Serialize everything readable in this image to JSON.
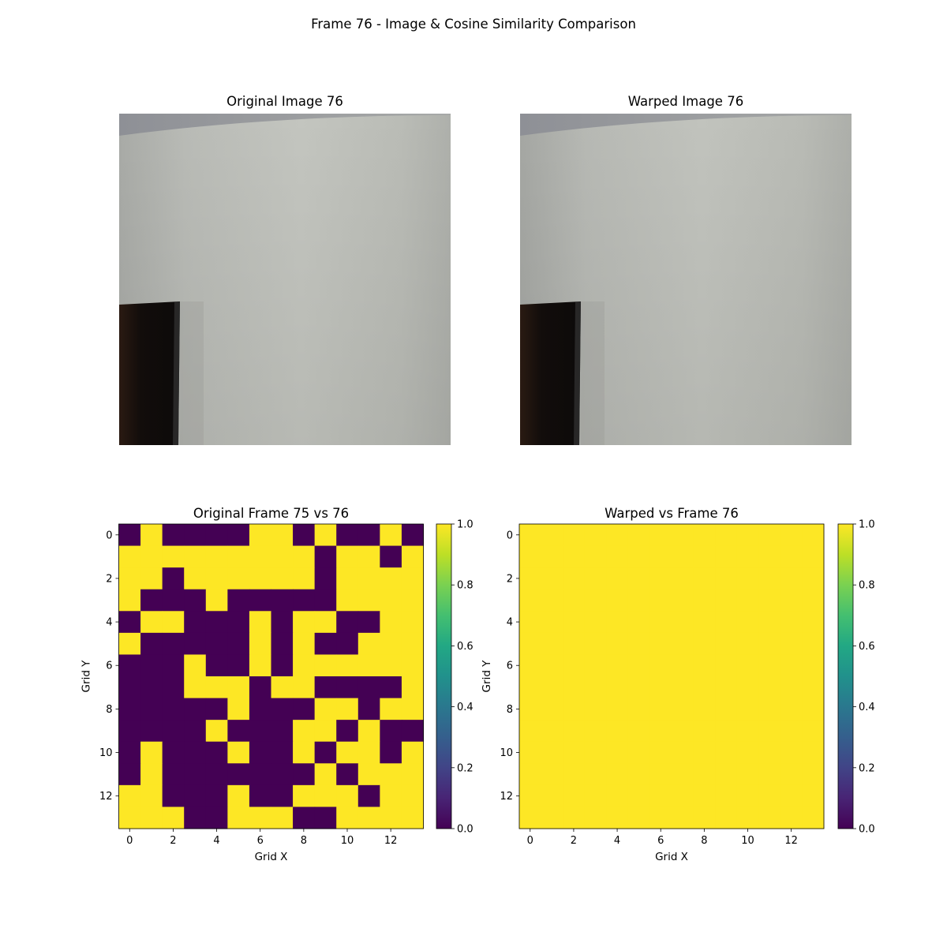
{
  "figure": {
    "suptitle": "Frame 76 - Image & Cosine Similarity Comparison"
  },
  "images": [
    {
      "title": "Original Image 76",
      "content": "photo of a light grey wall with a dark monitor edge at lower left"
    },
    {
      "title": "Warped Image 76",
      "content": "photo of a light grey wall with a dark monitor edge at lower left"
    }
  ],
  "colors": {
    "viridis_low": "#440154",
    "viridis_high": "#fde725",
    "wall_light": "#c2c4be",
    "wall_dark": "#a8aaa6",
    "monitor": "#141010"
  },
  "chart_data": [
    {
      "type": "heatmap",
      "title": "Original Frame 75 vs 76",
      "xlabel": "Grid X",
      "ylabel": "Grid Y",
      "x_ticks": [
        0,
        2,
        4,
        6,
        8,
        10,
        12
      ],
      "y_ticks": [
        0,
        2,
        4,
        6,
        8,
        10,
        12
      ],
      "colormap": "viridis",
      "vmin": 0.0,
      "vmax": 1.0,
      "colorbar_ticks": [
        "0.0",
        "0.2",
        "0.4",
        "0.6",
        "0.8",
        "1.0"
      ],
      "values": [
        [
          0,
          1,
          0,
          0,
          0,
          0,
          1,
          1,
          0,
          1,
          0,
          0,
          1,
          0
        ],
        [
          1,
          1,
          1,
          1,
          1,
          1,
          1,
          1,
          1,
          0,
          1,
          1,
          0,
          1
        ],
        [
          1,
          1,
          0,
          1,
          1,
          1,
          1,
          1,
          1,
          0,
          1,
          1,
          1,
          1
        ],
        [
          1,
          0,
          0,
          0,
          1,
          0,
          0,
          0,
          0,
          0,
          1,
          1,
          1,
          1
        ],
        [
          0,
          1,
          1,
          0,
          0,
          0,
          1,
          0,
          1,
          1,
          0,
          0,
          1,
          1
        ],
        [
          1,
          0,
          0,
          0,
          0,
          0,
          1,
          0,
          1,
          0,
          0,
          1,
          1,
          1
        ],
        [
          0,
          0,
          0,
          1,
          0,
          0,
          1,
          0,
          1,
          1,
          1,
          1,
          1,
          1
        ],
        [
          0,
          0,
          0,
          1,
          1,
          1,
          0,
          1,
          1,
          0,
          0,
          0,
          0,
          1
        ],
        [
          0,
          0,
          0,
          0,
          0,
          1,
          0,
          0,
          0,
          1,
          1,
          0,
          1,
          1
        ],
        [
          0,
          0,
          0,
          0,
          1,
          0,
          0,
          0,
          1,
          1,
          0,
          1,
          0,
          0
        ],
        [
          0,
          1,
          0,
          0,
          0,
          1,
          0,
          0,
          1,
          0,
          1,
          1,
          0,
          1
        ],
        [
          0,
          1,
          0,
          0,
          0,
          0,
          0,
          0,
          0,
          1,
          0,
          1,
          1,
          1
        ],
        [
          1,
          1,
          0,
          0,
          0,
          1,
          0,
          0,
          1,
          1,
          1,
          0,
          1,
          1
        ],
        [
          1,
          1,
          1,
          0,
          0,
          1,
          1,
          1,
          0,
          0,
          1,
          1,
          1,
          1
        ]
      ]
    },
    {
      "type": "heatmap",
      "title": "Warped vs Frame 76",
      "xlabel": "Grid X",
      "ylabel": "Grid Y",
      "x_ticks": [
        0,
        2,
        4,
        6,
        8,
        10,
        12
      ],
      "y_ticks": [
        0,
        2,
        4,
        6,
        8,
        10,
        12
      ],
      "colormap": "viridis",
      "vmin": 0.0,
      "vmax": 1.0,
      "colorbar_ticks": [
        "0.0",
        "0.2",
        "0.4",
        "0.6",
        "0.8",
        "1.0"
      ],
      "values": [
        [
          1,
          1,
          1,
          1,
          1,
          1,
          1,
          1,
          1,
          1,
          1,
          1,
          1,
          1
        ],
        [
          1,
          1,
          1,
          1,
          1,
          1,
          1,
          1,
          1,
          1,
          1,
          1,
          1,
          1
        ],
        [
          1,
          1,
          1,
          1,
          1,
          1,
          1,
          1,
          1,
          1,
          1,
          1,
          1,
          1
        ],
        [
          1,
          1,
          1,
          1,
          1,
          1,
          1,
          1,
          1,
          1,
          1,
          1,
          1,
          1
        ],
        [
          1,
          1,
          1,
          1,
          1,
          1,
          1,
          1,
          1,
          1,
          1,
          1,
          1,
          1
        ],
        [
          1,
          1,
          1,
          1,
          1,
          1,
          1,
          1,
          1,
          1,
          1,
          1,
          1,
          1
        ],
        [
          1,
          1,
          1,
          1,
          1,
          1,
          1,
          1,
          1,
          1,
          1,
          1,
          1,
          1
        ],
        [
          1,
          1,
          1,
          1,
          1,
          1,
          1,
          1,
          1,
          1,
          1,
          1,
          1,
          1
        ],
        [
          1,
          1,
          1,
          1,
          1,
          1,
          1,
          1,
          1,
          1,
          1,
          1,
          1,
          1
        ],
        [
          1,
          1,
          1,
          1,
          1,
          1,
          1,
          1,
          1,
          1,
          1,
          1,
          1,
          1
        ],
        [
          1,
          1,
          1,
          1,
          1,
          1,
          1,
          1,
          1,
          1,
          1,
          1,
          1,
          1
        ],
        [
          1,
          1,
          1,
          1,
          1,
          1,
          1,
          1,
          1,
          1,
          1,
          1,
          1,
          1
        ],
        [
          1,
          1,
          1,
          1,
          1,
          1,
          1,
          1,
          1,
          1,
          1,
          1,
          1,
          1
        ],
        [
          1,
          1,
          1,
          1,
          1,
          1,
          1,
          1,
          1,
          1,
          1,
          1,
          1,
          1
        ]
      ]
    }
  ]
}
